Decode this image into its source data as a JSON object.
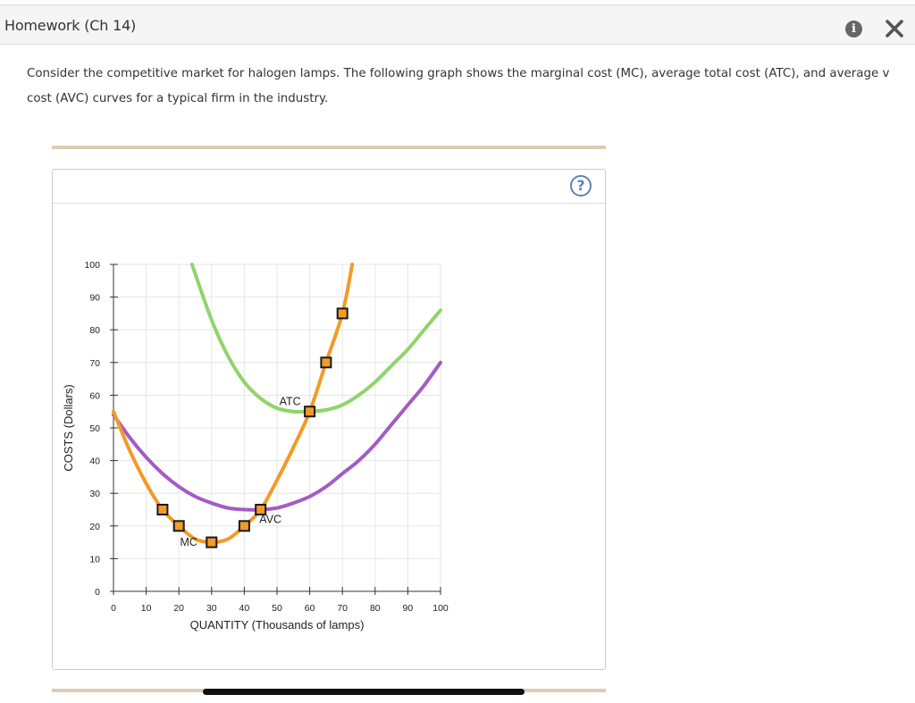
{
  "window": {
    "title": "Homework (Ch 14)",
    "info_icon": "info-icon",
    "close_icon": "close-icon"
  },
  "question": {
    "line1": "Consider the competitive market for halogen lamps. The following graph shows the marginal cost (MC), average total cost (ATC), and average v",
    "line2": "cost (AVC) curves for a typical firm in the industry."
  },
  "panel": {
    "help_icon": "help-icon",
    "help_label": "?"
  },
  "colors": {
    "mc": "#f29b26",
    "atc": "#8fd46c",
    "avc": "#a35cc4",
    "marker_fill": "#f29b26",
    "marker_stroke": "#1a1a1a",
    "grid": "#e6e6e6",
    "axis": "#333333"
  },
  "chart_data": {
    "type": "line",
    "xlabel": "QUANTITY (Thousands of lamps)",
    "ylabel": "COSTS (Dollars)",
    "xlim": [
      0,
      100
    ],
    "ylim": [
      0,
      100
    ],
    "xticks": [
      0,
      10,
      20,
      30,
      40,
      50,
      60,
      70,
      80,
      90,
      100
    ],
    "yticks": [
      0,
      10,
      20,
      30,
      40,
      50,
      60,
      70,
      80,
      90,
      100
    ],
    "grid": true,
    "series": [
      {
        "name": "MC",
        "x": [
          0,
          5,
          10,
          15,
          20,
          25,
          30,
          35,
          40,
          45,
          50,
          55,
          60,
          65,
          70,
          73
        ],
        "y": [
          55,
          43,
          33,
          25,
          20,
          16,
          15,
          16,
          20,
          25,
          34,
          44,
          55,
          70,
          85,
          100
        ],
        "markers": [
          {
            "x": 15,
            "y": 25
          },
          {
            "x": 20,
            "y": 20
          },
          {
            "x": 30,
            "y": 15
          },
          {
            "x": 40,
            "y": 20
          },
          {
            "x": 45,
            "y": 25
          },
          {
            "x": 60,
            "y": 55
          },
          {
            "x": 65,
            "y": 70
          },
          {
            "x": 70,
            "y": 85
          }
        ]
      },
      {
        "name": "ATC",
        "x": [
          24,
          30,
          35,
          40,
          45,
          50,
          55,
          60,
          65,
          70,
          75,
          80,
          85,
          90,
          95,
          100
        ],
        "y": [
          100,
          83,
          72,
          64,
          59,
          56,
          55,
          55,
          55.5,
          57,
          60,
          64,
          69,
          74,
          80,
          86
        ]
      },
      {
        "name": "AVC",
        "x": [
          0,
          5,
          10,
          15,
          20,
          25,
          30,
          35,
          40,
          45,
          50,
          55,
          60,
          65,
          70,
          75,
          80,
          85,
          90,
          95,
          100
        ],
        "y": [
          54,
          47,
          41,
          36,
          32,
          29,
          27,
          25.5,
          25,
          25,
          25.5,
          27,
          29,
          32,
          36,
          40,
          45,
          51,
          57,
          63,
          70
        ]
      }
    ],
    "annotations": [
      {
        "text": "ATC",
        "x": 54,
        "y": 58
      },
      {
        "text": "AVC",
        "x": 48,
        "y": 22
      },
      {
        "text": "MC",
        "x": 23,
        "y": 15
      }
    ]
  }
}
